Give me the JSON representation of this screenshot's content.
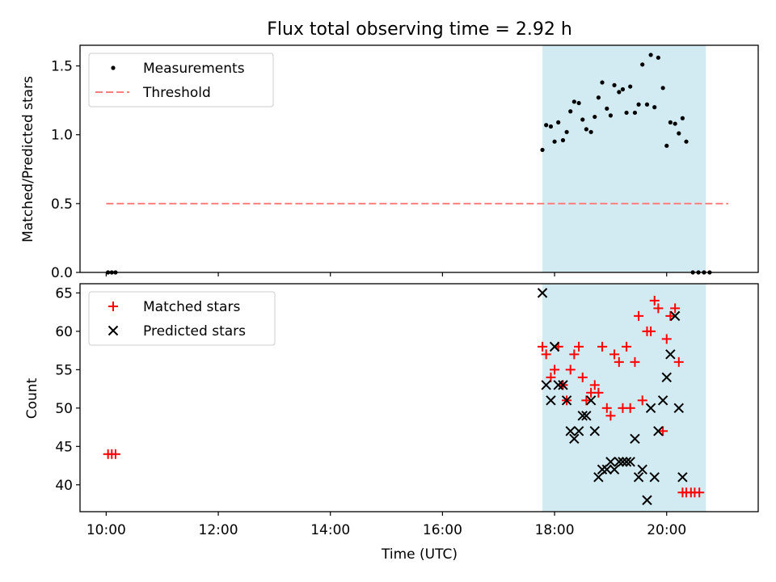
{
  "chart_data": {
    "type": "scatter",
    "title": "Flux total observing time = 2.92 h",
    "xlabel": "Time (UTC)",
    "x_unit": "hours UTC",
    "xlim": [
      "09:32",
      "21:38"
    ],
    "x_ticks": [
      {
        "value": "10:00",
        "label": "10:00"
      },
      {
        "value": "12:00",
        "label": "12:00"
      },
      {
        "value": "14:00",
        "label": "14:00"
      },
      {
        "value": "16:00",
        "label": "16:00"
      },
      {
        "value": "18:00",
        "label": "18:00"
      },
      {
        "value": "20:00",
        "label": "20:00"
      }
    ],
    "shaded_region": {
      "x_start": "17:47",
      "x_end": "20:42",
      "color": "#add8e6"
    },
    "panels": [
      {
        "ylabel": "Matched/Predicted stars",
        "ylim": [
          0,
          1.65
        ],
        "y_ticks": [
          "0.0",
          "0.5",
          "1.0",
          "1.5"
        ],
        "legend_position": "upper left",
        "series": [
          {
            "name": "Measurements",
            "kind": "dots",
            "color": "#000000",
            "points": [
              [
                "10:02",
                0
              ],
              [
                "10:06",
                0
              ],
              [
                "10:10",
                0
              ],
              [
                "17:47",
                0.89
              ],
              [
                "17:51",
                1.07
              ],
              [
                "17:56",
                1.06
              ],
              [
                "18:00",
                0.95
              ],
              [
                "18:04",
                1.09
              ],
              [
                "18:09",
                0.96
              ],
              [
                "18:13",
                1.02
              ],
              [
                "18:17",
                1.17
              ],
              [
                "18:21",
                1.24
              ],
              [
                "18:26",
                1.23
              ],
              [
                "18:30",
                1.11
              ],
              [
                "18:34",
                1.04
              ],
              [
                "18:39",
                1.02
              ],
              [
                "18:43",
                1.13
              ],
              [
                "18:47",
                1.27
              ],
              [
                "18:51",
                1.38
              ],
              [
                "18:56",
                1.19
              ],
              [
                "19:00",
                1.14
              ],
              [
                "19:04",
                1.36
              ],
              [
                "19:09",
                1.31
              ],
              [
                "19:13",
                1.33
              ],
              [
                "19:17",
                1.16
              ],
              [
                "19:21",
                1.35
              ],
              [
                "19:26",
                1.16
              ],
              [
                "19:30",
                1.22
              ],
              [
                "19:34",
                1.51
              ],
              [
                "19:39",
                1.22
              ],
              [
                "19:43",
                1.58
              ],
              [
                "19:47",
                1.2
              ],
              [
                "19:51",
                1.56
              ],
              [
                "19:56",
                1.34
              ],
              [
                "20:00",
                0.92
              ],
              [
                "20:04",
                1.09
              ],
              [
                "20:09",
                1.08
              ],
              [
                "20:13",
                1.01
              ],
              [
                "20:17",
                1.12
              ],
              [
                "20:21",
                0.95
              ],
              [
                "20:28",
                0
              ],
              [
                "20:34",
                0
              ],
              [
                "20:40",
                0
              ],
              [
                "20:46",
                0
              ]
            ]
          },
          {
            "name": "Threshold",
            "kind": "dashed-line",
            "color": "#ff7f7f",
            "x_from": "10:00",
            "x_to": "21:06",
            "y": 0.5
          }
        ]
      },
      {
        "ylabel": "Count",
        "ylim": [
          36.5,
          66.2
        ],
        "y_ticks": [
          "40",
          "45",
          "50",
          "55",
          "60",
          "65"
        ],
        "legend_position": "upper left",
        "series": [
          {
            "name": "Matched stars",
            "kind": "plus",
            "color": "#ff0000",
            "points": [
              [
                "10:02",
                44
              ],
              [
                "10:06",
                44
              ],
              [
                "10:10",
                44
              ],
              [
                "17:47",
                58
              ],
              [
                "17:51",
                57
              ],
              [
                "17:56",
                54
              ],
              [
                "18:00",
                55
              ],
              [
                "18:04",
                58
              ],
              [
                "18:09",
                53
              ],
              [
                "18:13",
                51
              ],
              [
                "18:17",
                55
              ],
              [
                "18:21",
                57
              ],
              [
                "18:26",
                58
              ],
              [
                "18:30",
                54
              ],
              [
                "18:34",
                51
              ],
              [
                "18:39",
                52
              ],
              [
                "18:43",
                53
              ],
              [
                "18:47",
                52
              ],
              [
                "18:51",
                58
              ],
              [
                "18:56",
                50
              ],
              [
                "19:00",
                49
              ],
              [
                "19:04",
                57
              ],
              [
                "19:09",
                56
              ],
              [
                "19:13",
                50
              ],
              [
                "19:17",
                58
              ],
              [
                "19:21",
                50
              ],
              [
                "19:26",
                56
              ],
              [
                "19:30",
                62
              ],
              [
                "19:34",
                51
              ],
              [
                "19:39",
                60
              ],
              [
                "19:43",
                60
              ],
              [
                "19:47",
                64
              ],
              [
                "19:51",
                63
              ],
              [
                "19:56",
                47
              ],
              [
                "20:00",
                59
              ],
              [
                "20:04",
                62
              ],
              [
                "20:09",
                63
              ],
              [
                "20:13",
                56
              ],
              [
                "20:17",
                39
              ],
              [
                "20:21",
                39
              ],
              [
                "20:26",
                39
              ],
              [
                "20:30",
                39
              ],
              [
                "20:35",
                39
              ]
            ]
          },
          {
            "name": "Predicted stars",
            "kind": "x",
            "color": "#000000",
            "points": [
              [
                "17:47",
                65
              ],
              [
                "17:51",
                53
              ],
              [
                "17:56",
                51
              ],
              [
                "18:00",
                58
              ],
              [
                "18:04",
                53
              ],
              [
                "18:09",
                53
              ],
              [
                "18:13",
                51
              ],
              [
                "18:17",
                47
              ],
              [
                "18:21",
                46
              ],
              [
                "18:26",
                47
              ],
              [
                "18:30",
                49
              ],
              [
                "18:34",
                49
              ],
              [
                "18:39",
                51
              ],
              [
                "18:43",
                47
              ],
              [
                "18:47",
                41
              ],
              [
                "18:51",
                42
              ],
              [
                "18:56",
                42
              ],
              [
                "19:00",
                43
              ],
              [
                "19:04",
                42
              ],
              [
                "19:09",
                43
              ],
              [
                "19:13",
                43
              ],
              [
                "19:17",
                43
              ],
              [
                "19:21",
                43
              ],
              [
                "19:26",
                46
              ],
              [
                "19:30",
                41
              ],
              [
                "19:34",
                42
              ],
              [
                "19:39",
                38
              ],
              [
                "19:43",
                50
              ],
              [
                "19:47",
                41
              ],
              [
                "19:51",
                47
              ],
              [
                "19:56",
                51
              ],
              [
                "20:00",
                54
              ],
              [
                "20:04",
                57
              ],
              [
                "20:09",
                62
              ],
              [
                "20:13",
                50
              ],
              [
                "20:17",
                41
              ]
            ]
          }
        ]
      }
    ]
  }
}
